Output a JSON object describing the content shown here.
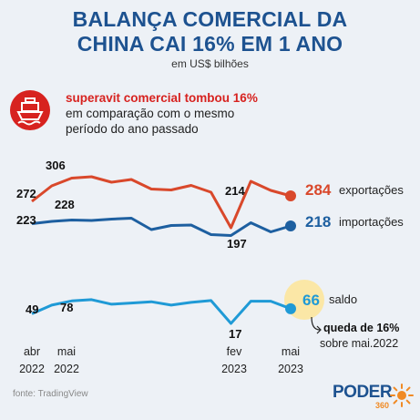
{
  "header": {
    "title_line1": "BALANÇA COMERCIAL DA",
    "title_line2": "CHINA CAI 16% EM 1 ANO",
    "subtitle": "em US$ bilhões"
  },
  "callout": {
    "icon": "cargo-ship-icon",
    "highlight": "superavit comercial tombou 16%",
    "rest_line1": "em comparação com o mesmo",
    "rest_line2": "período do ano passado"
  },
  "chart_data": {
    "type": "line",
    "x": [
      "2022-04",
      "2022-05",
      "2022-06",
      "2022-07",
      "2022-08",
      "2022-09",
      "2022-10",
      "2022-11",
      "2022-12",
      "2023-01",
      "2023-02",
      "2023-03",
      "2023-04",
      "2023-05"
    ],
    "series": [
      {
        "name": "exportações",
        "color": "#d9482b",
        "values": [
          272,
          306,
          323,
          326,
          314,
          320,
          299,
          297,
          307,
          292,
          214,
          316,
          296,
          284
        ]
      },
      {
        "name": "importações",
        "color": "#1d5fa0",
        "values": [
          223,
          228,
          231,
          230,
          233,
          235,
          210,
          219,
          220,
          199,
          197,
          225,
          205,
          218
        ]
      },
      {
        "name": "saldo",
        "color": "#1f9ad6",
        "values": [
          49,
          78,
          92,
          96,
          81,
          85,
          89,
          78,
          87,
          93,
          17,
          91,
          91,
          66
        ]
      }
    ],
    "labels": {
      "exp_start": "272",
      "exp_may": "306",
      "exp_low": "214",
      "exp_end": "284",
      "imp_start": "223",
      "imp_may": "228",
      "imp_low": "197",
      "imp_end": "218",
      "bal_start": "49",
      "bal_may": "78",
      "bal_low": "17",
      "bal_end": "66"
    },
    "series_labels": {
      "exp": "exportações",
      "imp": "importações",
      "bal": "saldo"
    },
    "annotation": {
      "line1": "queda de 16%",
      "line2": "sobre mai.2022"
    },
    "x_ticks": [
      {
        "month": "abr",
        "year": "2022"
      },
      {
        "month": "mai",
        "year": "2022"
      },
      {
        "month": "fev",
        "year": "2023"
      },
      {
        "month": "mai",
        "year": "2023"
      }
    ]
  },
  "footer": {
    "source": "fonte: TradingView",
    "logo_word": "PODER",
    "logo_num": "360"
  },
  "colors": {
    "brand_blue": "#1d5290",
    "red": "#d7221f",
    "orange": "#f08a24",
    "highlight_yellow": "#fbe7a6"
  }
}
